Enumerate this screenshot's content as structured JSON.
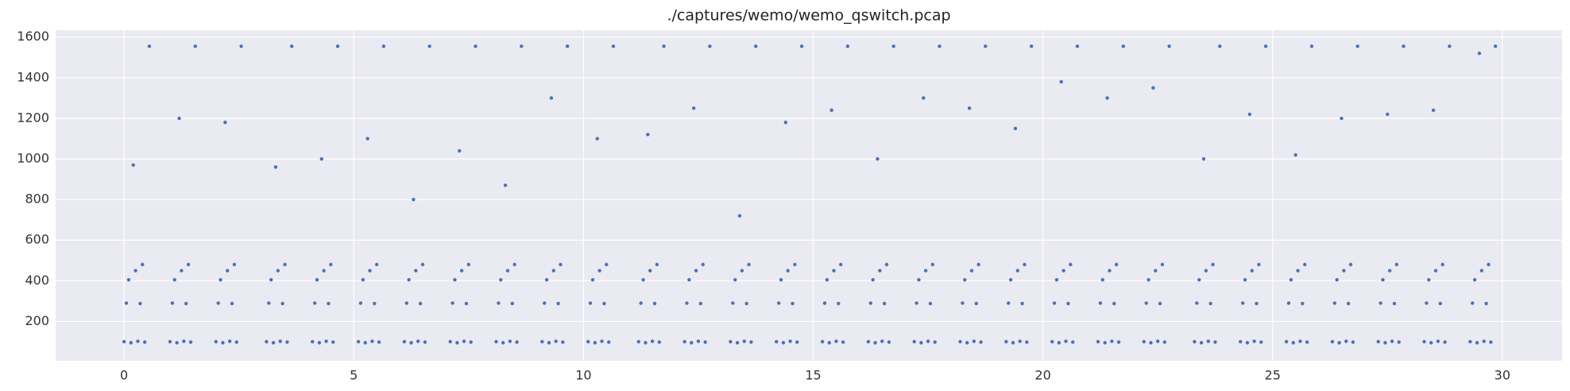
{
  "chart_data": {
    "type": "scatter",
    "title": "./captures/wemo/wemo_qswitch.pcap",
    "color": "#4c72b0",
    "grid": true,
    "xlim": [
      -1.49,
      31.3
    ],
    "ylim": [
      6,
      1634
    ],
    "xticks": [
      0,
      5,
      10,
      15,
      20,
      25,
      30
    ],
    "yticks": [
      200,
      400,
      600,
      800,
      1000,
      1200,
      1400,
      1600
    ],
    "x": [
      0,
      0.15,
      0.3,
      0.45,
      0.05,
      0.35,
      0.1,
      0.25,
      0.4,
      0.55,
      0.2,
      1,
      1.15,
      1.3,
      1.45,
      1.05,
      1.35,
      1.1,
      1.25,
      1.4,
      1.55,
      1.2,
      2,
      2.15,
      2.3,
      2.45,
      2.05,
      2.35,
      2.1,
      2.25,
      2.4,
      2.55,
      2.2,
      3.1,
      3.25,
      3.4,
      3.55,
      3.15,
      3.45,
      3.2,
      3.35,
      3.5,
      3.65,
      3.3,
      4.1,
      4.25,
      4.4,
      4.55,
      4.15,
      4.45,
      4.2,
      4.35,
      4.5,
      4.65,
      4.3,
      5.1,
      5.25,
      5.4,
      5.55,
      5.15,
      5.45,
      5.2,
      5.35,
      5.5,
      5.65,
      5.3,
      6.1,
      6.25,
      6.4,
      6.55,
      6.15,
      6.45,
      6.2,
      6.35,
      6.5,
      6.65,
      6.3,
      7.1,
      7.25,
      7.4,
      7.55,
      7.15,
      7.45,
      7.2,
      7.35,
      7.5,
      7.65,
      7.3,
      8.1,
      8.25,
      8.4,
      8.55,
      8.15,
      8.45,
      8.2,
      8.35,
      8.5,
      8.65,
      8.3,
      9.1,
      9.25,
      9.4,
      9.55,
      9.15,
      9.45,
      9.2,
      9.35,
      9.5,
      9.65,
      9.3,
      10.1,
      10.25,
      10.4,
      10.55,
      10.15,
      10.45,
      10.2,
      10.35,
      10.5,
      10.65,
      10.3,
      11.2,
      11.35,
      11.5,
      11.65,
      11.25,
      11.55,
      11.3,
      11.45,
      11.6,
      11.75,
      11.4,
      12.2,
      12.35,
      12.5,
      12.65,
      12.25,
      12.55,
      12.3,
      12.45,
      12.6,
      12.75,
      12.4,
      13.2,
      13.35,
      13.5,
      13.65,
      13.25,
      13.55,
      13.3,
      13.45,
      13.6,
      13.75,
      13.4,
      14.2,
      14.35,
      14.5,
      14.65,
      14.25,
      14.55,
      14.3,
      14.45,
      14.6,
      14.75,
      14.4,
      15.2,
      15.35,
      15.5,
      15.65,
      15.25,
      15.55,
      15.3,
      15.45,
      15.6,
      15.75,
      15.4,
      16.2,
      16.35,
      16.5,
      16.65,
      16.25,
      16.55,
      16.3,
      16.45,
      16.6,
      16.75,
      16.4,
      17.2,
      17.35,
      17.5,
      17.65,
      17.25,
      17.55,
      17.3,
      17.45,
      17.6,
      17.75,
      17.4,
      18.2,
      18.35,
      18.5,
      18.65,
      18.25,
      18.55,
      18.3,
      18.45,
      18.6,
      18.75,
      18.4,
      19.2,
      19.35,
      19.5,
      19.65,
      19.25,
      19.55,
      19.3,
      19.45,
      19.6,
      19.75,
      19.4,
      20.2,
      20.35,
      20.5,
      20.65,
      20.25,
      20.55,
      20.3,
      20.45,
      20.6,
      20.75,
      20.4,
      21.2,
      21.35,
      21.5,
      21.65,
      21.25,
      21.55,
      21.3,
      21.45,
      21.6,
      21.75,
      21.4,
      22.2,
      22.35,
      22.5,
      22.65,
      22.25,
      22.55,
      22.3,
      22.45,
      22.6,
      22.75,
      22.4,
      23.3,
      23.45,
      23.6,
      23.75,
      23.35,
      23.65,
      23.4,
      23.55,
      23.7,
      23.85,
      23.5,
      24.3,
      24.45,
      24.6,
      24.75,
      24.35,
      24.65,
      24.4,
      24.55,
      24.7,
      24.85,
      24.5,
      25.3,
      25.45,
      25.6,
      25.75,
      25.35,
      25.65,
      25.4,
      25.55,
      25.7,
      25.85,
      25.5,
      26.3,
      26.45,
      26.6,
      26.75,
      26.35,
      26.65,
      26.4,
      26.55,
      26.7,
      26.85,
      26.5,
      27.3,
      27.45,
      27.6,
      27.75,
      27.35,
      27.65,
      27.4,
      27.55,
      27.7,
      27.85,
      27.5,
      28.3,
      28.45,
      28.6,
      28.75,
      28.35,
      28.65,
      28.4,
      28.55,
      28.7,
      28.85,
      28.5,
      29.3,
      29.45,
      29.6,
      29.75,
      29.35,
      29.65,
      29.4,
      29.55,
      29.7,
      29.85,
      29.5
    ],
    "values": [
      100,
      95,
      102,
      98,
      290,
      288,
      405,
      450,
      480,
      1555,
      970,
      100,
      95,
      102,
      98,
      290,
      288,
      405,
      450,
      480,
      1555,
      1200,
      100,
      95,
      102,
      98,
      290,
      288,
      405,
      450,
      480,
      1555,
      1180,
      100,
      95,
      102,
      98,
      290,
      288,
      405,
      450,
      480,
      1555,
      960,
      100,
      95,
      102,
      98,
      290,
      288,
      405,
      450,
      480,
      1555,
      1000,
      100,
      95,
      102,
      98,
      290,
      288,
      405,
      450,
      480,
      1555,
      1100,
      100,
      95,
      102,
      98,
      290,
      288,
      405,
      450,
      480,
      1555,
      800,
      100,
      95,
      102,
      98,
      290,
      288,
      405,
      450,
      480,
      1555,
      1040,
      100,
      95,
      102,
      98,
      290,
      288,
      405,
      450,
      480,
      1555,
      870,
      100,
      95,
      102,
      98,
      290,
      288,
      405,
      450,
      480,
      1555,
      1300,
      100,
      95,
      102,
      98,
      290,
      288,
      405,
      450,
      480,
      1555,
      1100,
      100,
      95,
      102,
      98,
      290,
      288,
      405,
      450,
      480,
      1555,
      1120,
      100,
      95,
      102,
      98,
      290,
      288,
      405,
      450,
      480,
      1555,
      1250,
      100,
      95,
      102,
      98,
      290,
      288,
      405,
      450,
      480,
      1555,
      720,
      100,
      95,
      102,
      98,
      290,
      288,
      405,
      450,
      480,
      1555,
      1180,
      100,
      95,
      102,
      98,
      290,
      288,
      405,
      450,
      480,
      1555,
      1240,
      100,
      95,
      102,
      98,
      290,
      288,
      405,
      450,
      480,
      1555,
      1000,
      100,
      95,
      102,
      98,
      290,
      288,
      405,
      450,
      480,
      1555,
      1300,
      100,
      95,
      102,
      98,
      290,
      288,
      405,
      450,
      480,
      1555,
      1250,
      100,
      95,
      102,
      98,
      290,
      288,
      405,
      450,
      480,
      1555,
      1150,
      100,
      95,
      102,
      98,
      290,
      288,
      405,
      450,
      480,
      1555,
      1380,
      100,
      95,
      102,
      98,
      290,
      288,
      405,
      450,
      480,
      1555,
      1300,
      100,
      95,
      102,
      98,
      290,
      288,
      405,
      450,
      480,
      1555,
      1350,
      100,
      95,
      102,
      98,
      290,
      288,
      405,
      450,
      480,
      1555,
      1000,
      100,
      95,
      102,
      98,
      290,
      288,
      405,
      450,
      480,
      1555,
      1220,
      100,
      95,
      102,
      98,
      290,
      288,
      405,
      450,
      480,
      1555,
      1020,
      100,
      95,
      102,
      98,
      290,
      288,
      405,
      450,
      480,
      1555,
      1200,
      100,
      95,
      102,
      98,
      290,
      288,
      405,
      450,
      480,
      1555,
      1220,
      100,
      95,
      102,
      98,
      290,
      288,
      405,
      450,
      480,
      1555,
      1240,
      100,
      95,
      102,
      98,
      290,
      288,
      405,
      450,
      480,
      1555,
      1520
    ]
  }
}
